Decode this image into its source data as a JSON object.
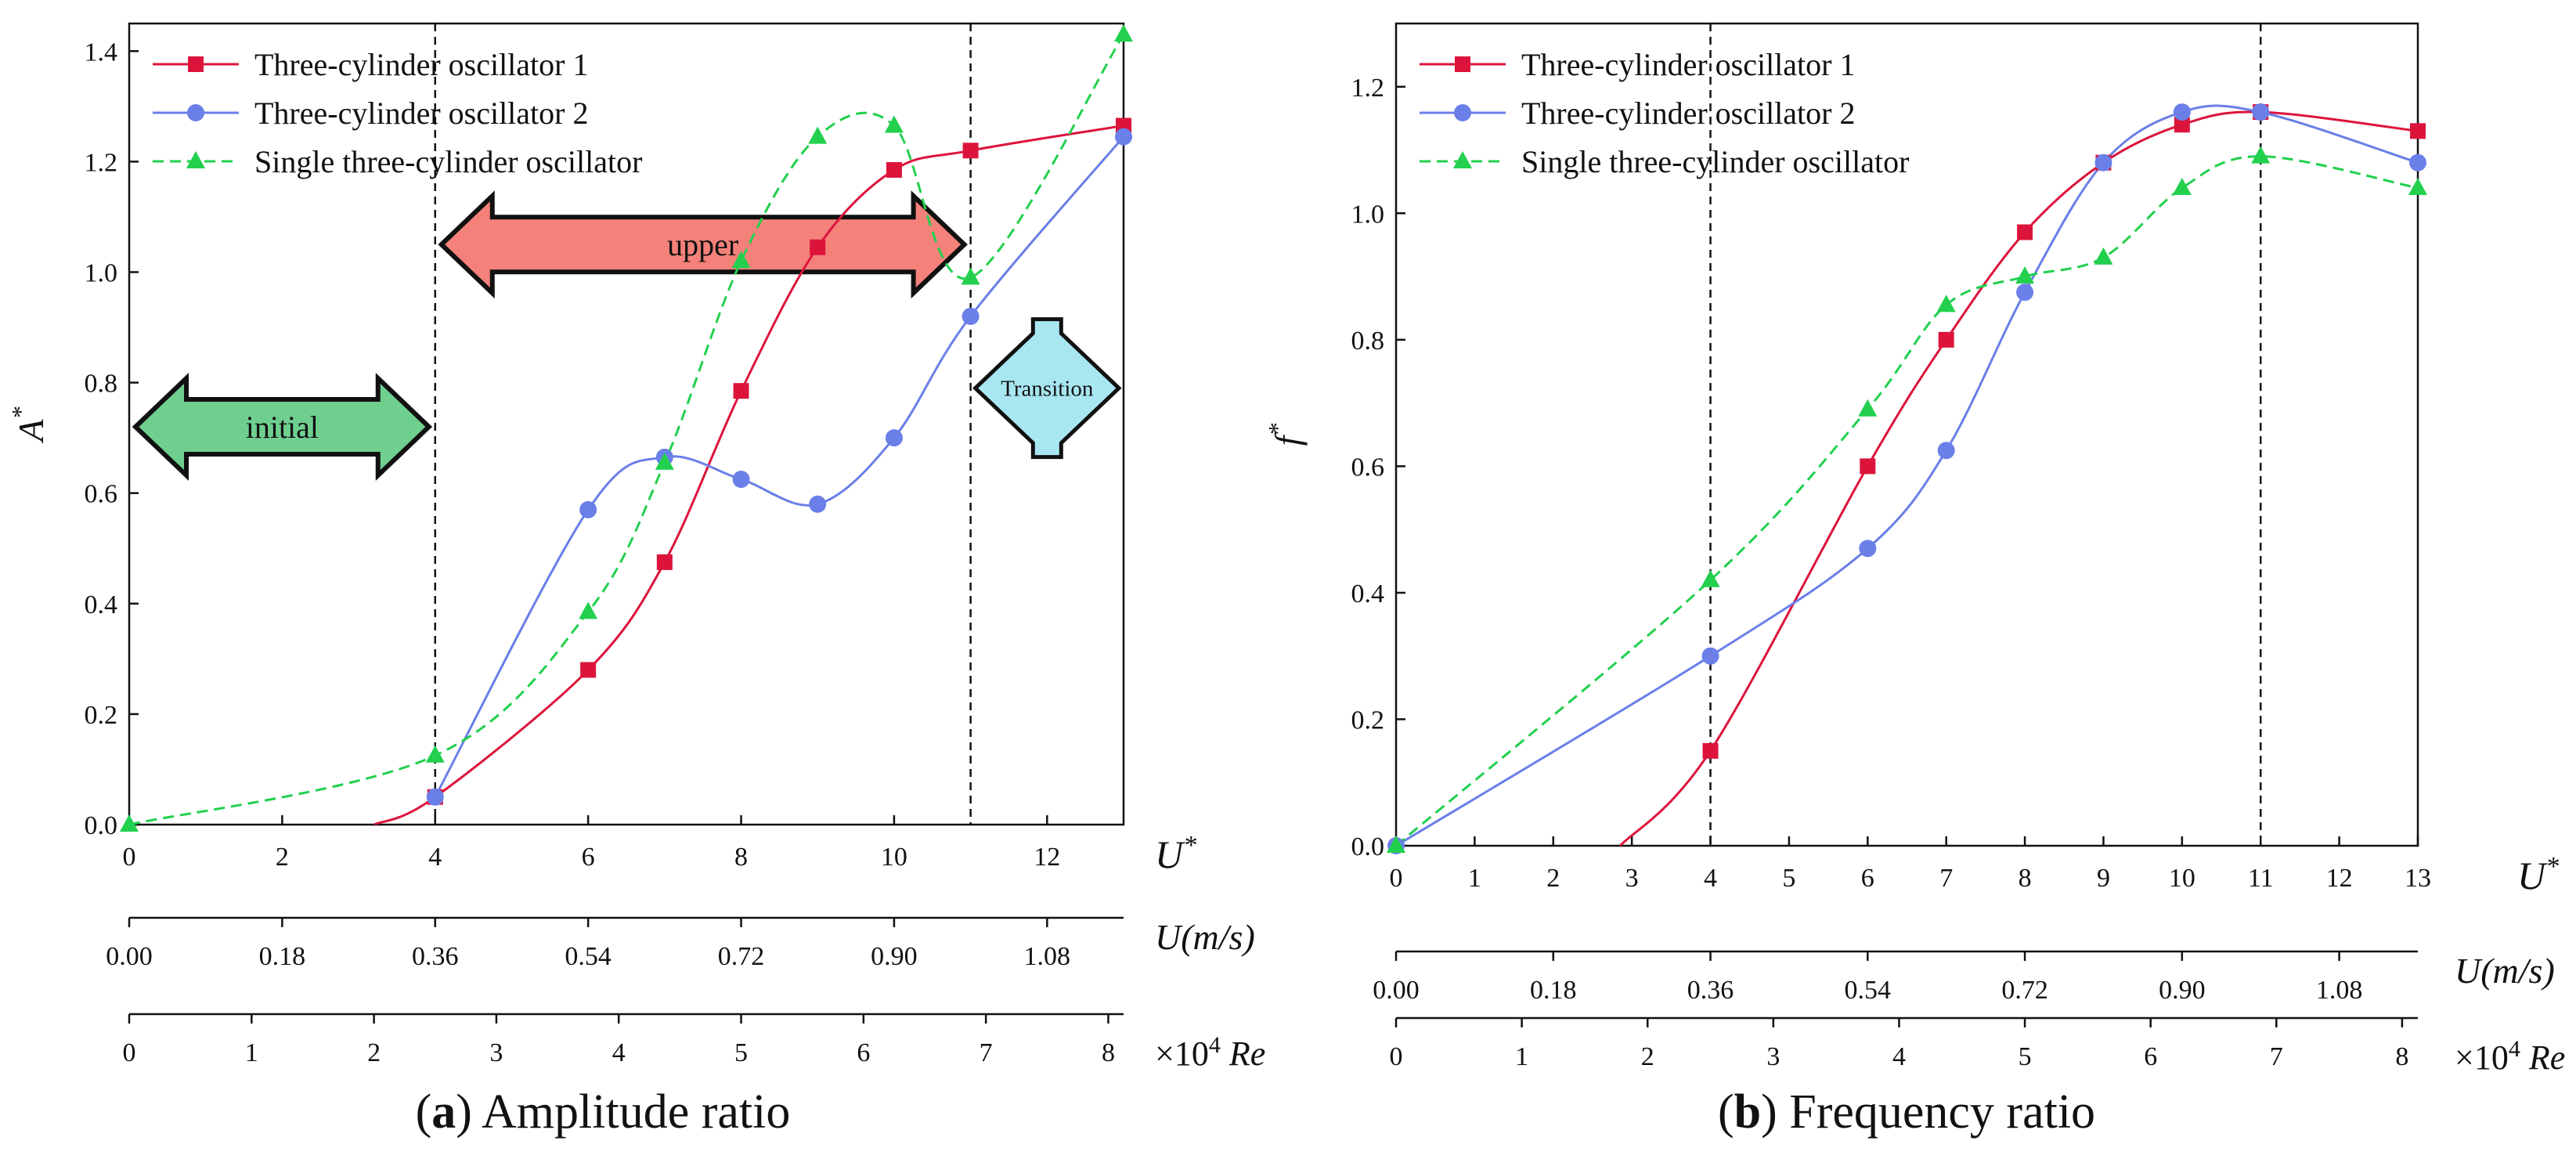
{
  "figure": {
    "panels": [
      {
        "letter": "a",
        "caption": "Amplitude ratio"
      },
      {
        "letter": "b",
        "caption": "Frequency ratio"
      }
    ]
  },
  "chart_data": [
    {
      "type": "line",
      "panel": "a",
      "ylabel": "A",
      "ylabel_sup": "*",
      "xlabel": "U",
      "xlabel_sup": "*",
      "xlim": [
        0,
        13
      ],
      "ylim": [
        0,
        1.45
      ],
      "xticks": [
        0,
        2,
        4,
        6,
        8,
        10,
        12
      ],
      "yticks": [
        0.0,
        0.2,
        0.4,
        0.6,
        0.8,
        1.0,
        1.2,
        1.4
      ],
      "ytick_labels": [
        "0.0",
        "0.2",
        "0.4",
        "0.6",
        "0.8",
        "1.0",
        "1.2",
        "1.4"
      ],
      "vlines": [
        4,
        11
      ],
      "legend_position": "top-left",
      "colors": {
        "s1": "#dc143c",
        "s2": "#6a7fe8",
        "s3": "#22d04e"
      },
      "series": [
        {
          "name": "Three-cylinder oscillator 1",
          "marker": "square",
          "style": "solid",
          "color": "#dc143c",
          "x": [
            4,
            6,
            7,
            8,
            9,
            10,
            11,
            13
          ],
          "y": [
            0.05,
            0.28,
            0.475,
            0.785,
            1.045,
            1.185,
            1.22,
            1.265
          ],
          "curve": [
            [
              3.2,
              0.0
            ],
            [
              4,
              0.05
            ],
            [
              6,
              0.28
            ],
            [
              7,
              0.475
            ],
            [
              8,
              0.785
            ],
            [
              9,
              1.045
            ],
            [
              10,
              1.185
            ],
            [
              11,
              1.22
            ],
            [
              13,
              1.265
            ]
          ]
        },
        {
          "name": "Three-cylinder oscillator 2",
          "marker": "circle",
          "style": "solid",
          "color": "#6a7fe8",
          "x": [
            4,
            6,
            7,
            8,
            9,
            10,
            11,
            13
          ],
          "y": [
            0.05,
            0.57,
            0.665,
            0.625,
            0.58,
            0.7,
            0.92,
            1.245
          ]
        },
        {
          "name": "Single three-cylinder oscillator",
          "marker": "triangle",
          "style": "dashed",
          "color": "#22d04e",
          "x": [
            0,
            4,
            6,
            7,
            8,
            9,
            10,
            11,
            13
          ],
          "y": [
            0.0,
            0.125,
            0.385,
            0.655,
            1.02,
            1.245,
            1.265,
            0.99,
            1.43
          ]
        }
      ],
      "secondary_axes": [
        {
          "label": "U(m/s)",
          "ticks": [
            0,
            2,
            4,
            6,
            8,
            10,
            12
          ],
          "tick_labels": [
            "0.00",
            "0.18",
            "0.36",
            "0.54",
            "0.72",
            "0.90",
            "1.08"
          ]
        },
        {
          "label_prefix": "×10",
          "label_sup": "4",
          "label_suffix": "Re",
          "ticks": [
            0,
            1.6,
            3.2,
            4.8,
            6.4,
            8.0,
            9.6,
            11.2,
            12.8
          ],
          "tick_labels": [
            "0",
            "1",
            "2",
            "3",
            "4",
            "5",
            "6",
            "7",
            "8"
          ]
        }
      ],
      "annotations": [
        {
          "text": "initial",
          "kind": "double-arrow",
          "fill": "#6fcf8f",
          "x_start": 0,
          "x_end": 4,
          "y": 0.72
        },
        {
          "text": "upper",
          "kind": "double-arrow",
          "fill": "#f4817a",
          "x_start": 4,
          "x_end": 11,
          "y": 1.05
        },
        {
          "text": "Transition",
          "kind": "vertical-arrow",
          "fill": "#a8e7f2",
          "x_start": 11,
          "x_end": 13,
          "y": 0.79
        }
      ]
    },
    {
      "type": "line",
      "panel": "b",
      "ylabel": "f",
      "ylabel_sup": "*",
      "xlabel": "U",
      "xlabel_sup": "*",
      "xlim": [
        0,
        13
      ],
      "ylim": [
        0,
        1.3
      ],
      "xticks": [
        0,
        1,
        2,
        3,
        4,
        5,
        6,
        7,
        8,
        9,
        10,
        11,
        12,
        13
      ],
      "yticks": [
        0.0,
        0.2,
        0.4,
        0.6,
        0.8,
        1.0,
        1.2
      ],
      "ytick_labels": [
        "0.0",
        "0.2",
        "0.4",
        "0.6",
        "0.8",
        "1.0",
        "1.2"
      ],
      "vlines": [
        4,
        11
      ],
      "legend_position": "top-left",
      "series": [
        {
          "name": "Three-cylinder oscillator 1",
          "marker": "square",
          "style": "solid",
          "color": "#dc143c",
          "x": [
            4,
            6,
            7,
            8,
            9,
            10,
            11,
            13
          ],
          "y": [
            0.15,
            0.6,
            0.8,
            0.97,
            1.08,
            1.14,
            1.16,
            1.13
          ],
          "curve": [
            [
              2.85,
              0.0
            ],
            [
              4,
              0.15
            ],
            [
              6,
              0.6
            ],
            [
              7,
              0.8
            ],
            [
              8,
              0.97
            ],
            [
              9,
              1.08
            ],
            [
              10,
              1.14
            ],
            [
              11,
              1.16
            ],
            [
              13,
              1.13
            ]
          ]
        },
        {
          "name": "Three-cylinder oscillator 2",
          "marker": "circle",
          "style": "solid",
          "color": "#6a7fe8",
          "x": [
            0,
            4,
            6,
            7,
            8,
            9,
            10,
            11,
            13
          ],
          "y": [
            0.0,
            0.3,
            0.47,
            0.625,
            0.875,
            1.08,
            1.16,
            1.16,
            1.08
          ]
        },
        {
          "name": "Single three-cylinder oscillator",
          "marker": "triangle",
          "style": "dashed",
          "color": "#22d04e",
          "x": [
            0,
            4,
            6,
            7,
            8,
            9,
            10,
            11,
            13
          ],
          "y": [
            0.0,
            0.42,
            0.69,
            0.855,
            0.9,
            0.93,
            1.04,
            1.09,
            1.04
          ]
        }
      ],
      "secondary_axes": [
        {
          "label": "U(m/s)",
          "ticks": [
            0,
            2,
            4,
            6,
            8,
            10,
            12
          ],
          "tick_labels": [
            "0.00",
            "0.18",
            "0.36",
            "0.54",
            "0.72",
            "0.90",
            "1.08"
          ]
        },
        {
          "label_prefix": "×10",
          "label_sup": "4",
          "label_suffix": "Re",
          "ticks": [
            0,
            1.6,
            3.2,
            4.8,
            6.4,
            8.0,
            9.6,
            11.2,
            12.8
          ],
          "tick_labels": [
            "0",
            "1",
            "2",
            "3",
            "4",
            "5",
            "6",
            "7",
            "8"
          ]
        }
      ],
      "annotations": []
    }
  ]
}
